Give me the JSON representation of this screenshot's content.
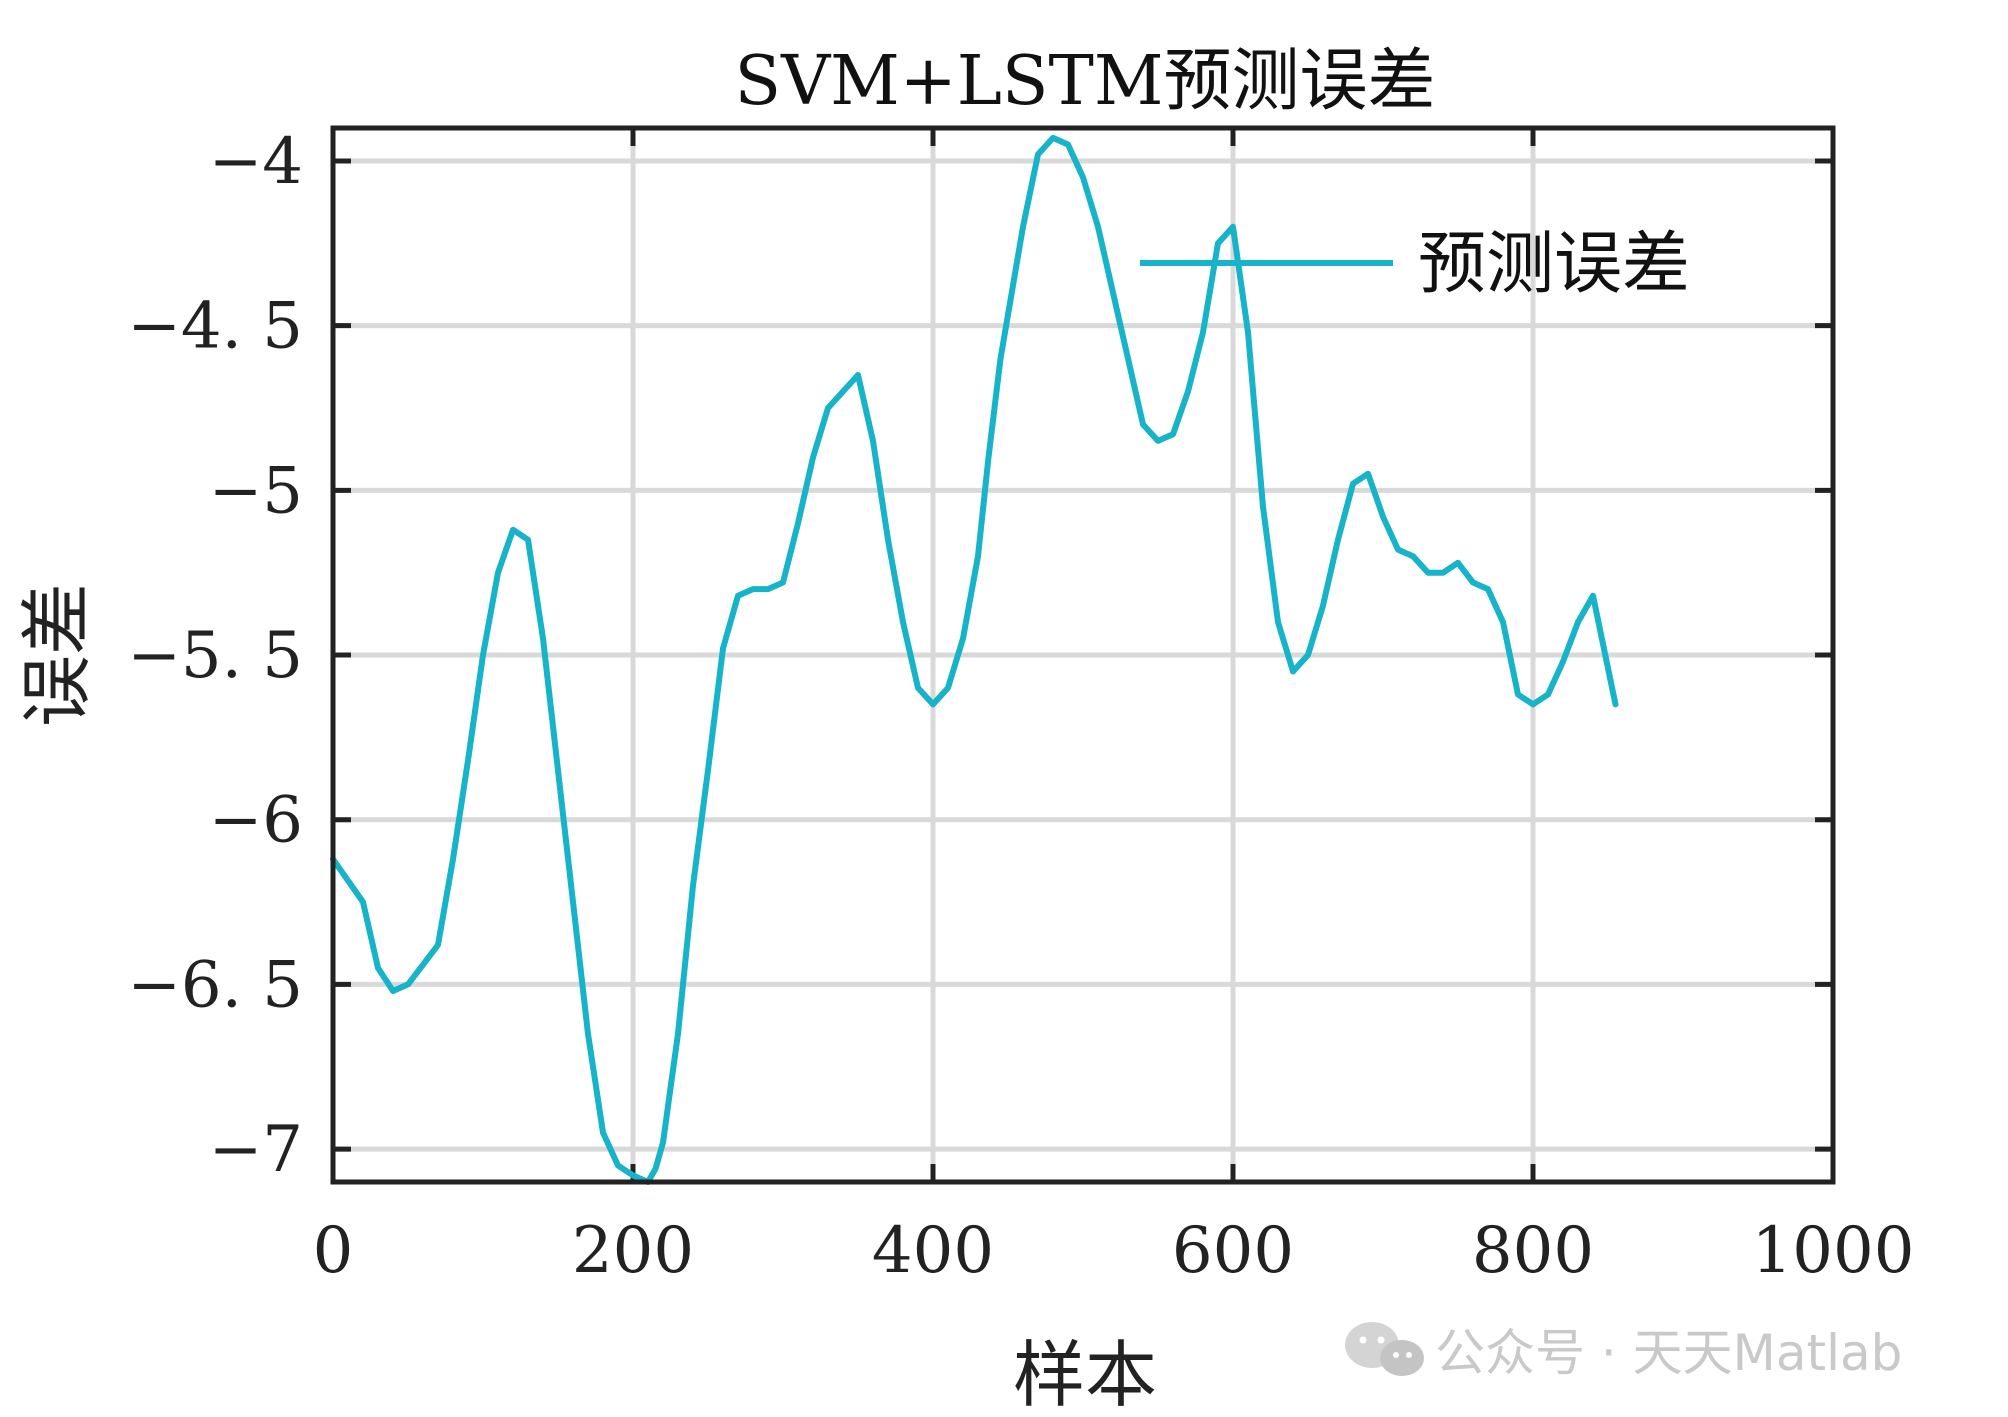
{
  "chart_data": {
    "type": "line",
    "title": "SVM+LSTM预测误差",
    "xlabel": "样本",
    "ylabel": "误差",
    "xlim": [
      0,
      1000
    ],
    "ylim": [
      -7.1,
      -3.9
    ],
    "xticks": [
      0,
      200,
      400,
      600,
      800,
      1000
    ],
    "xtick_labels": [
      "0",
      "200",
      "400",
      "600",
      "800",
      "1000"
    ],
    "yticks": [
      -4,
      -4.5,
      -5,
      -5.5,
      -6,
      -6.5,
      -7
    ],
    "ytick_labels": [
      "−4",
      "−4. 5",
      "−5",
      "−5. 5",
      "−6",
      "−6. 5",
      "−7"
    ],
    "grid": true,
    "legend_position": "top-right",
    "series": [
      {
        "name": "预测误差",
        "color": "#17b3c8",
        "x": [
          0,
          20,
          30,
          40,
          50,
          70,
          80,
          90,
          100,
          110,
          120,
          130,
          140,
          150,
          160,
          170,
          180,
          190,
          200,
          210,
          215,
          220,
          230,
          240,
          250,
          260,
          270,
          280,
          290,
          300,
          310,
          320,
          330,
          340,
          350,
          360,
          370,
          380,
          390,
          400,
          410,
          420,
          430,
          437,
          445,
          460,
          470,
          480,
          490,
          500,
          510,
          520,
          530,
          540,
          550,
          560,
          570,
          580,
          590,
          600,
          610,
          620,
          630,
          640,
          650,
          660,
          670,
          680,
          690,
          700,
          710,
          720,
          730,
          740,
          750,
          760,
          770,
          780,
          790,
          800,
          810,
          820,
          830,
          840,
          855
        ],
        "y": [
          -6.12,
          -6.25,
          -6.45,
          -6.52,
          -6.5,
          -6.38,
          -6.12,
          -5.82,
          -5.5,
          -5.25,
          -5.12,
          -5.15,
          -5.45,
          -5.85,
          -6.25,
          -6.65,
          -6.95,
          -7.05,
          -7.08,
          -7.1,
          -7.06,
          -6.98,
          -6.65,
          -6.2,
          -5.85,
          -5.48,
          -5.32,
          -5.3,
          -5.3,
          -5.28,
          -5.1,
          -4.9,
          -4.75,
          -4.7,
          -4.65,
          -4.85,
          -5.15,
          -5.4,
          -5.6,
          -5.65,
          -5.6,
          -5.45,
          -5.2,
          -4.9,
          -4.6,
          -4.2,
          -3.98,
          -3.93,
          -3.95,
          -4.05,
          -4.2,
          -4.4,
          -4.6,
          -4.8,
          -4.85,
          -4.83,
          -4.7,
          -4.52,
          -4.25,
          -4.2,
          -4.52,
          -5.05,
          -5.4,
          -5.55,
          -5.5,
          -5.35,
          -5.15,
          -4.98,
          -4.95,
          -5.08,
          -5.18,
          -5.2,
          -5.25,
          -5.25,
          -5.22,
          -5.28,
          -5.3,
          -5.4,
          -5.62,
          -5.65,
          -5.62,
          -5.52,
          -5.4,
          -5.32,
          -5.65
        ]
      }
    ]
  },
  "watermark": {
    "icon": "wechat-icon",
    "text": "公众号 · 天天Matlab"
  }
}
